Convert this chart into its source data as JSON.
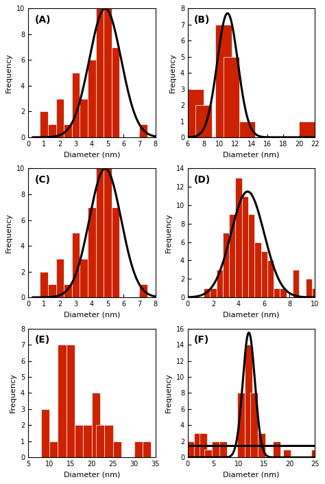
{
  "panels": [
    {
      "label": "(A)",
      "bar_centers": [
        1.0,
        1.5,
        2.0,
        2.5,
        3.0,
        3.5,
        4.0,
        4.5,
        5.0,
        5.5,
        7.25
      ],
      "bar_heights": [
        2,
        1,
        3,
        1,
        5,
        3,
        6,
        10,
        10,
        7,
        1
      ],
      "bar_width": 0.5,
      "xlim": [
        0,
        8
      ],
      "xticks": [
        0,
        1,
        2,
        3,
        4,
        5,
        6,
        7,
        8
      ],
      "ylim": [
        0,
        10
      ],
      "yticks": [
        0,
        2,
        4,
        6,
        8,
        10
      ],
      "xlabel": "Diameter (nm)",
      "ylabel": "Frequency",
      "curve_mean": 4.85,
      "curve_std": 1.0,
      "curve_scale": 10.0,
      "curve_xmin": 0.3,
      "curve_xmax": 8.0
    },
    {
      "label": "(B)",
      "bar_centers": [
        7.0,
        8.0,
        10.5,
        11.5,
        13.5,
        21.0
      ],
      "bar_heights": [
        3,
        2,
        7,
        5,
        1,
        1
      ],
      "bar_width": 2.0,
      "xlim": [
        6,
        22
      ],
      "xticks": [
        6,
        8,
        10,
        12,
        14,
        16,
        18,
        20,
        22
      ],
      "ylim": [
        0,
        8
      ],
      "yticks": [
        0,
        1,
        2,
        3,
        4,
        5,
        6,
        7,
        8
      ],
      "xlabel": "Diameter (nm)",
      "ylabel": "Frequency",
      "curve_mean": 11.0,
      "curve_std": 1.3,
      "curve_scale": 7.7,
      "curve_xmin": 6.0,
      "curve_xmax": 22.0
    },
    {
      "label": "(C)",
      "bar_centers": [
        1.0,
        1.5,
        2.0,
        2.5,
        3.0,
        3.5,
        4.0,
        4.5,
        5.0,
        5.5,
        7.25
      ],
      "bar_heights": [
        2,
        1,
        3,
        1,
        5,
        3,
        7,
        10,
        10,
        7,
        1
      ],
      "bar_width": 0.5,
      "xlim": [
        0,
        8
      ],
      "xticks": [
        0,
        1,
        2,
        3,
        4,
        5,
        6,
        7,
        8
      ],
      "ylim": [
        0,
        10
      ],
      "yticks": [
        0,
        2,
        4,
        6,
        8,
        10
      ],
      "xlabel": "Diameter (nm)",
      "ylabel": "Frequency",
      "curve_mean": 4.85,
      "curve_std": 1.0,
      "curve_scale": 10.0,
      "curve_xmin": 0.3,
      "curve_xmax": 8.0
    },
    {
      "label": "(D)",
      "bar_centers": [
        1.5,
        2.0,
        2.5,
        3.0,
        3.5,
        4.0,
        4.5,
        5.0,
        5.5,
        6.0,
        6.5,
        7.0,
        7.5,
        8.5,
        9.5,
        10.0
      ],
      "bar_heights": [
        1,
        1,
        3,
        7,
        9,
        13,
        11,
        9,
        6,
        5,
        4,
        1,
        1,
        3,
        2,
        1
      ],
      "bar_width": 0.5,
      "xlim": [
        0,
        10
      ],
      "xticks": [
        0,
        2,
        4,
        6,
        8,
        10
      ],
      "ylim": [
        0,
        14
      ],
      "yticks": [
        0,
        2,
        4,
        6,
        8,
        10,
        12,
        14
      ],
      "xlabel": "Diameter (nm)",
      "ylabel": "Frequency",
      "curve_mean": 4.7,
      "curve_std": 1.3,
      "curve_scale": 11.5,
      "curve_xmin": 0.0,
      "curve_xmax": 10.5
    },
    {
      "label": "(E)",
      "bar_centers": [
        9.0,
        11.0,
        13.0,
        15.0,
        17.0,
        19.0,
        21.0,
        22.0,
        24.0,
        26.0,
        31.0,
        33.0
      ],
      "bar_heights": [
        3,
        1,
        7,
        7,
        2,
        2,
        4,
        2,
        2,
        1,
        1,
        1
      ],
      "bar_width": 2.0,
      "xlim": [
        5,
        35
      ],
      "xticks": [
        5,
        10,
        15,
        20,
        25,
        30,
        35
      ],
      "ylim": [
        0,
        8
      ],
      "yticks": [
        0,
        1,
        2,
        3,
        4,
        5,
        6,
        7,
        8
      ],
      "xlabel": "Diameter (nm)",
      "ylabel": "Frequency",
      "curve_mean": null,
      "curve_std": null,
      "curve_scale": null,
      "curve_xmin": null,
      "curve_xmax": null
    },
    {
      "label": "(F)",
      "bar_centers": [
        0.5,
        2.0,
        3.0,
        4.0,
        5.5,
        7.0,
        10.5,
        12.0,
        13.0,
        14.5,
        17.5,
        19.5,
        25.0
      ],
      "bar_heights": [
        2,
        3,
        3,
        1,
        2,
        2,
        8,
        14,
        8,
        3,
        2,
        1,
        1
      ],
      "bar_width": 1.5,
      "xlim": [
        0,
        25
      ],
      "xticks": [
        0,
        5,
        10,
        15,
        20,
        25
      ],
      "ylim": [
        0,
        16
      ],
      "yticks": [
        0,
        2,
        4,
        6,
        8,
        10,
        12,
        14,
        16
      ],
      "xlabel": "Diameter (nm)",
      "ylabel": "Frequency",
      "curve_mean": 12.0,
      "curve_std": 1.2,
      "curve_scale": 15.5,
      "curve_xmin": 0.0,
      "curve_xmax": 25.0
    }
  ],
  "bar_color": "#CC2200",
  "bar_edge_color": "white",
  "curve_color": "black",
  "curve_lw": 2.2,
  "label_fontsize": 10,
  "axis_fontsize": 8,
  "tick_fontsize": 7,
  "bg_color": "#f0f0f0"
}
